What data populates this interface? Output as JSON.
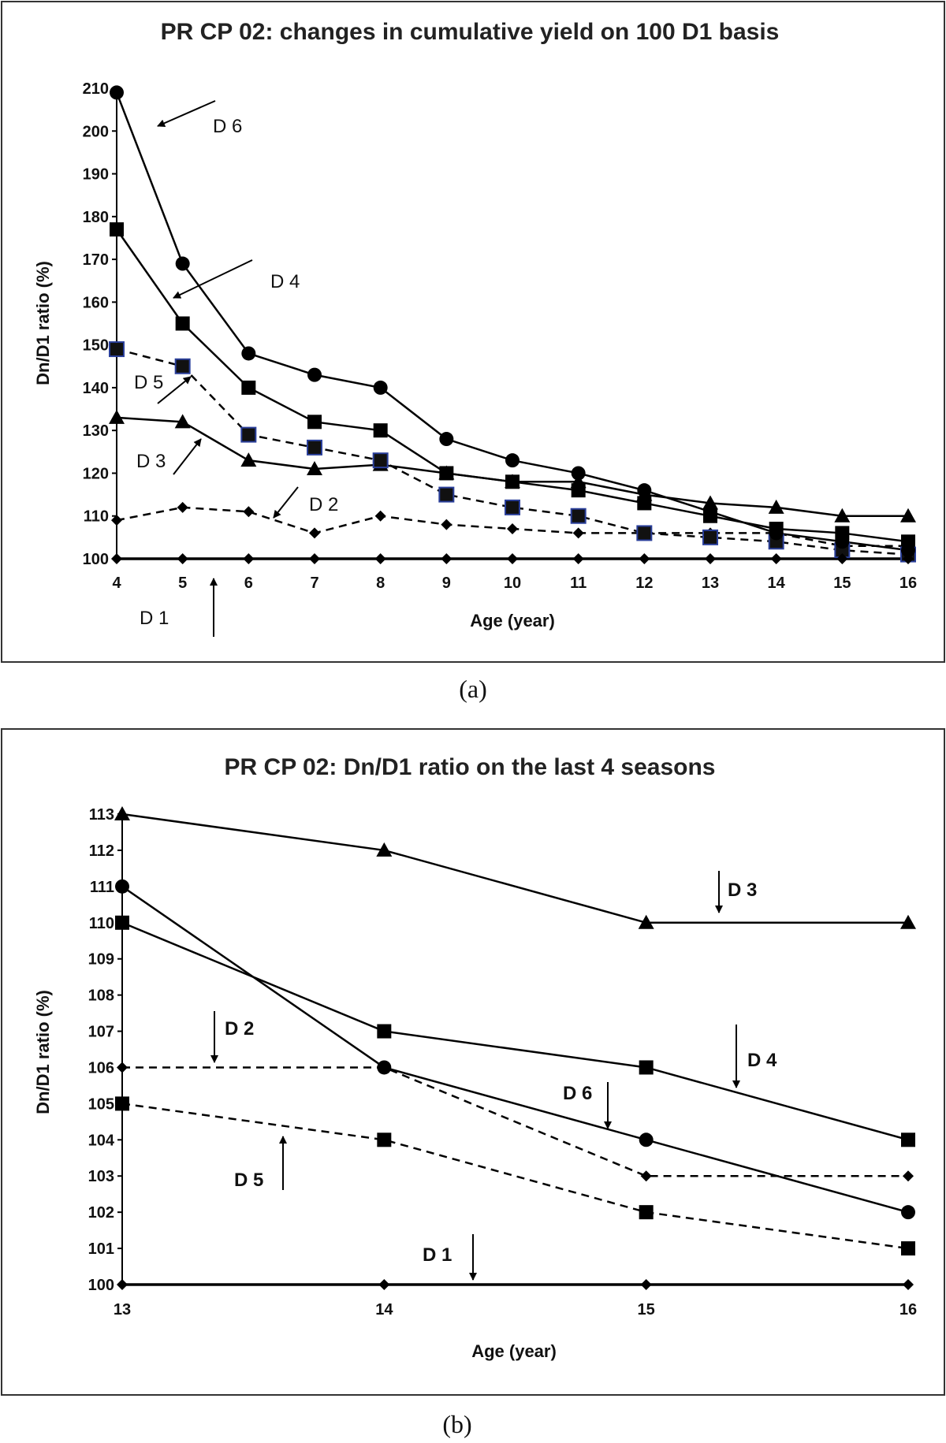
{
  "chart_data": [
    {
      "type": "line",
      "panel_caption": "(a)",
      "title": "PR CP 02: changes in cumulative yield on 100 D1 basis",
      "xlabel": "Age (year)",
      "ylabel": "Dn/D1 ratio (%)",
      "x": [
        4,
        5,
        6,
        7,
        8,
        9,
        10,
        11,
        12,
        13,
        14,
        15,
        16
      ],
      "ylim": [
        100,
        210
      ],
      "yticks": [
        100,
        110,
        120,
        130,
        140,
        150,
        160,
        170,
        180,
        190,
        200,
        210
      ],
      "series": [
        {
          "name": "D1",
          "marker": "diamond",
          "dash": "solid",
          "values": [
            100,
            100,
            100,
            100,
            100,
            100,
            100,
            100,
            100,
            100,
            100,
            100,
            100
          ]
        },
        {
          "name": "D2",
          "marker": "diamond",
          "dash": "dashed",
          "values": [
            109,
            112,
            111,
            106,
            110,
            108,
            107,
            106,
            106,
            106,
            106,
            103,
            103
          ]
        },
        {
          "name": "D3",
          "marker": "triangle",
          "dash": "solid",
          "values": [
            133,
            132,
            123,
            121,
            122,
            120,
            118,
            118,
            115,
            113,
            112,
            110,
            110
          ]
        },
        {
          "name": "D4",
          "marker": "square",
          "dash": "solid",
          "values": [
            177,
            155,
            140,
            132,
            130,
            120,
            118,
            116,
            113,
            110,
            107,
            106,
            104
          ]
        },
        {
          "name": "D5",
          "marker": "square-outline",
          "dash": "dashed",
          "values": [
            149,
            145,
            129,
            126,
            123,
            115,
            112,
            110,
            106,
            105,
            104,
            102,
            101
          ]
        },
        {
          "name": "D6",
          "marker": "circle",
          "dash": "solid",
          "values": [
            209,
            169,
            148,
            143,
            140,
            128,
            123,
            120,
            116,
            111,
            106,
            104,
            102
          ]
        }
      ],
      "annotations": [
        "D 6",
        "D 4",
        "D 5",
        "D 3",
        "D 2",
        "D 1"
      ]
    },
    {
      "type": "line",
      "panel_caption": "(b)",
      "title": "PR CP 02: Dn/D1 ratio on the last 4 seasons",
      "xlabel": "Age (year)",
      "ylabel": "Dn/D1 ratio (%)",
      "x": [
        13,
        14,
        15,
        16
      ],
      "ylim": [
        100,
        113
      ],
      "yticks": [
        100,
        101,
        102,
        103,
        104,
        105,
        106,
        107,
        108,
        109,
        110,
        111,
        112,
        113
      ],
      "series": [
        {
          "name": "D1",
          "marker": "diamond",
          "dash": "solid",
          "values": [
            100,
            100,
            100,
            100
          ]
        },
        {
          "name": "D2",
          "marker": "diamond",
          "dash": "dashed",
          "values": [
            106,
            106,
            103,
            103
          ]
        },
        {
          "name": "D3",
          "marker": "triangle",
          "dash": "solid",
          "values": [
            113,
            112,
            110,
            110
          ]
        },
        {
          "name": "D4",
          "marker": "square",
          "dash": "solid",
          "values": [
            110,
            107,
            106,
            104
          ]
        },
        {
          "name": "D5",
          "marker": "square",
          "dash": "dashed",
          "values": [
            105,
            104,
            102,
            101
          ]
        },
        {
          "name": "D6",
          "marker": "circle",
          "dash": "solid",
          "values": [
            111,
            106,
            104,
            102
          ]
        }
      ],
      "annotations": [
        "D 3",
        "D 2",
        "D 4",
        "D 6",
        "D 5",
        "D 1"
      ]
    }
  ]
}
